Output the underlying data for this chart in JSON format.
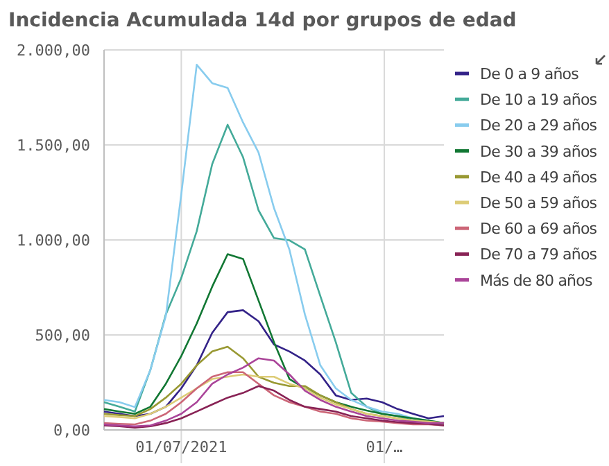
{
  "chart_data": {
    "type": "line",
    "title": "Incidencia Acumulada 14d por grupos de edad",
    "x": [
      "2021-05-27",
      "2021-06-03",
      "2021-06-10",
      "2021-06-17",
      "2021-06-24",
      "2021-07-01",
      "2021-07-08",
      "2021-07-15",
      "2021-07-22",
      "2021-07-29",
      "2021-08-05",
      "2021-08-12",
      "2021-08-19",
      "2021-08-26",
      "2021-09-02",
      "2021-09-09",
      "2021-09-16",
      "2021-09-23",
      "2021-09-30",
      "2021-10-07",
      "2021-10-14",
      "2021-10-21",
      "2021-10-28"
    ],
    "xlim": [
      "2021-05-27",
      "2021-10-28"
    ],
    "xticks": [
      {
        "value": "2021-07-01",
        "label": "01/07/2021"
      },
      {
        "value": "2021-10-01",
        "label": "01/…"
      }
    ],
    "ylim": [
      0,
      2000
    ],
    "yticks": [
      {
        "value": 0,
        "label": "0,00"
      },
      {
        "value": 500,
        "label": "500,00"
      },
      {
        "value": 1000,
        "label": "1.000,00"
      },
      {
        "value": 1500,
        "label": "1.500,00"
      },
      {
        "value": 2000,
        "label": "2.000,00"
      }
    ],
    "grid": true,
    "legend": "right",
    "marker": "none",
    "line_style": "solid",
    "series": [
      {
        "name": "De 0 a 9 años",
        "color": "#332288",
        "values": [
          97,
          85,
          73,
          85,
          122,
          219,
          340,
          511,
          620,
          630,
          572,
          450,
          413,
          365,
          292,
          182,
          158,
          165,
          146,
          110,
          85,
          61,
          73
        ]
      },
      {
        "name": "De 10 a 19 años",
        "color": "#44aa99",
        "values": [
          146,
          122,
          97,
          316,
          608,
          800,
          1046,
          1399,
          1606,
          1435,
          1156,
          1010,
          998,
          950,
          705,
          462,
          195,
          122,
          85,
          73,
          49,
          36,
          29
        ]
      },
      {
        "name": "De 20 a 29 años",
        "color": "#88ccee",
        "values": [
          158,
          146,
          120,
          316,
          600,
          1241,
          1922,
          1825,
          1800,
          1618,
          1460,
          1168,
          949,
          608,
          340,
          219,
          158,
          122,
          97,
          85,
          61,
          49,
          36
        ]
      },
      {
        "name": "De 30 a 39 años",
        "color": "#117733",
        "values": [
          110,
          97,
          85,
          122,
          243,
          389,
          560,
          754,
          925,
          900,
          681,
          462,
          268,
          219,
          182,
          146,
          122,
          102,
          85,
          73,
          61,
          49,
          36
        ]
      },
      {
        "name": "De 40 a 49 años",
        "color": "#999933",
        "values": [
          85,
          78,
          73,
          110,
          170,
          243,
          340,
          413,
          438,
          377,
          280,
          248,
          231,
          231,
          182,
          146,
          110,
          85,
          73,
          61,
          49,
          44,
          36
        ]
      },
      {
        "name": "De 50 a 59 años",
        "color": "#ddcc77",
        "values": [
          73,
          68,
          61,
          85,
          122,
          170,
          219,
          268,
          280,
          292,
          280,
          280,
          243,
          219,
          170,
          134,
          110,
          85,
          73,
          61,
          49,
          44,
          36
        ]
      },
      {
        "name": "De 60 a 69 años",
        "color": "#cc6677",
        "values": [
          36,
          32,
          29,
          49,
          85,
          146,
          219,
          280,
          304,
          304,
          243,
          182,
          146,
          122,
          97,
          85,
          61,
          49,
          44,
          36,
          29,
          29,
          24
        ]
      },
      {
        "name": "De 70 a 79 años",
        "color": "#882255",
        "values": [
          24,
          19,
          12,
          19,
          36,
          61,
          97,
          134,
          170,
          195,
          231,
          207,
          158,
          122,
          110,
          97,
          73,
          61,
          49,
          41,
          36,
          32,
          24
        ]
      },
      {
        "name": "Más de 80 años",
        "color": "#aa4499",
        "values": [
          29,
          24,
          19,
          24,
          49,
          85,
          146,
          243,
          292,
          328,
          377,
          365,
          292,
          207,
          158,
          122,
          97,
          73,
          61,
          49,
          44,
          36,
          36
        ]
      }
    ]
  }
}
